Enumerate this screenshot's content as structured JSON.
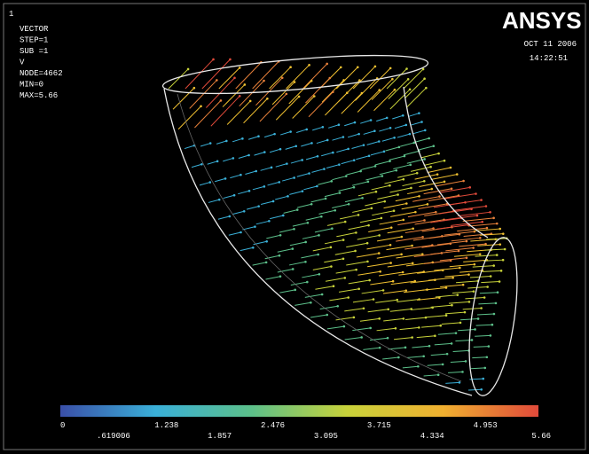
{
  "window_number": "1",
  "info": [
    "VECTOR",
    "STEP=1",
    "SUB =1",
    "V",
    "NODE=4662",
    "MIN=0",
    "MAX=5.66"
  ],
  "logo": "ANSYS",
  "date": "OCT 11 2006",
  "time": "14:22:51",
  "colorbar": {
    "labels": [
      "0",
      ".619006",
      "1.238",
      "1.857",
      "2.476",
      "3.095",
      "3.715",
      "4.334",
      "4.953",
      "5.66"
    ]
  }
}
